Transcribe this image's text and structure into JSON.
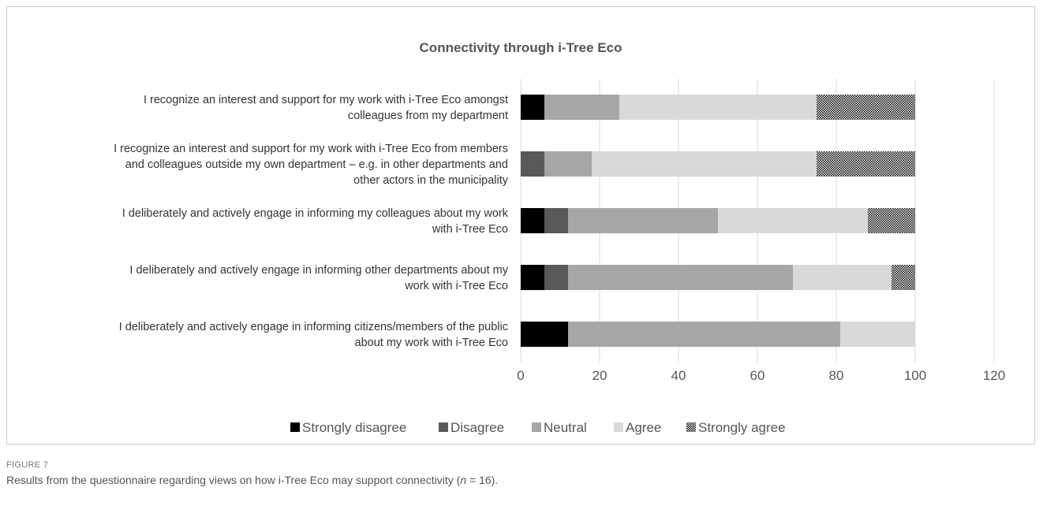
{
  "chart_data": {
    "type": "bar",
    "orientation": "horizontal",
    "stacked": true,
    "title": "Connectivity through i-Tree Eco",
    "xlim": [
      0,
      120
    ],
    "xticks": [
      "0",
      "20",
      "40",
      "60",
      "80",
      "100",
      "120"
    ],
    "grid": true,
    "legend_position": "bottom",
    "categories": [
      [
        "I recognize an interest and support for my work with i-Tree Eco amongst",
        "colleagues from my department"
      ],
      [
        "I recognize an interest and support for my work with i-Tree Eco from members",
        "and colleagues outside my own department – e.g. in other departments and",
        "other actors in the municipality"
      ],
      [
        "I deliberately and actively engage in informing my colleagues about my work",
        "with i-Tree Eco"
      ],
      [
        "I deliberately and actively engage in informing other departments about my",
        "work with i-Tree Eco"
      ],
      [
        "I deliberately and actively engage in informing citizens/members of the public",
        "about my work with i-Tree Eco"
      ]
    ],
    "series": [
      {
        "name": "Strongly disagree",
        "color": "#000000",
        "values": [
          6,
          0,
          6,
          6,
          12
        ]
      },
      {
        "name": "Disagree",
        "color": "#595959",
        "values": [
          0,
          6,
          6,
          6,
          0
        ]
      },
      {
        "name": "Neutral",
        "color": "#a6a6a6",
        "values": [
          19,
          12,
          38,
          57,
          69
        ]
      },
      {
        "name": "Agree",
        "color": "#d9d9d9",
        "values": [
          50,
          57,
          38,
          25,
          19
        ]
      },
      {
        "name": "Strongly agree",
        "color": "#000000",
        "pattern": "dotted",
        "values": [
          25,
          25,
          12,
          6,
          0
        ]
      }
    ]
  },
  "caption": {
    "label": "FIGURE 7",
    "text_before": "Results from the questionnaire regarding views on how i-Tree Eco may support connectivity (",
    "n_symbol": "n",
    "text_after": " = 16)."
  }
}
